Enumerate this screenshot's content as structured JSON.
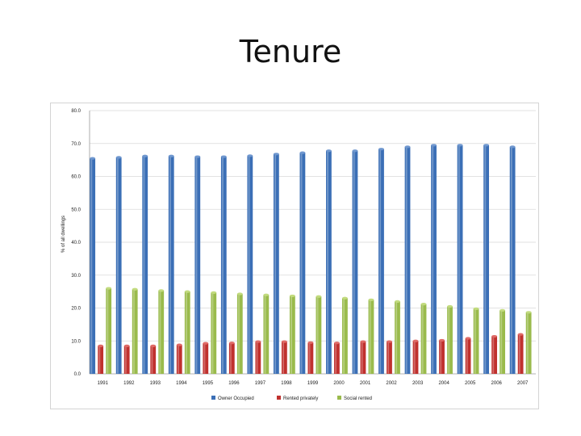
{
  "slide": {
    "title": "Tenure"
  },
  "chart_data": {
    "type": "bar",
    "title": "",
    "xlabel": "",
    "ylabel": "% of all dwellings",
    "ylim": [
      0,
      80
    ],
    "yticks": [
      "0.0",
      "10.0",
      "20.0",
      "30.0",
      "40.0",
      "50.0",
      "60.0",
      "70.0",
      "80.0"
    ],
    "grid": true,
    "legend_position": "bottom",
    "categories": [
      "1991",
      "1992",
      "1993",
      "1994",
      "1995",
      "1996",
      "1997",
      "1998",
      "1999",
      "2000",
      "2001",
      "2002",
      "2003",
      "2004",
      "2005",
      "2006",
      "2007"
    ],
    "series": [
      {
        "name": "Owner Occupied",
        "color": "#3b6fb6",
        "values": [
          65.5,
          65.8,
          66.2,
          66.2,
          66.0,
          66.0,
          66.3,
          66.8,
          67.2,
          67.8,
          67.8,
          68.3,
          69.0,
          69.5,
          69.5,
          69.5,
          69.0
        ]
      },
      {
        "name": "Rented privately",
        "color": "#c0312e",
        "values": [
          8.5,
          8.5,
          8.5,
          8.8,
          9.3,
          9.4,
          9.8,
          9.8,
          9.5,
          9.4,
          9.8,
          9.8,
          10.0,
          10.2,
          10.8,
          11.4,
          12.0
        ]
      },
      {
        "name": "Social rented",
        "color": "#9abb4c",
        "values": [
          26.0,
          25.7,
          25.3,
          25.0,
          24.7,
          24.3,
          24.0,
          23.7,
          23.5,
          23.0,
          22.5,
          22.0,
          21.2,
          20.5,
          19.8,
          19.3,
          18.7
        ]
      }
    ]
  }
}
